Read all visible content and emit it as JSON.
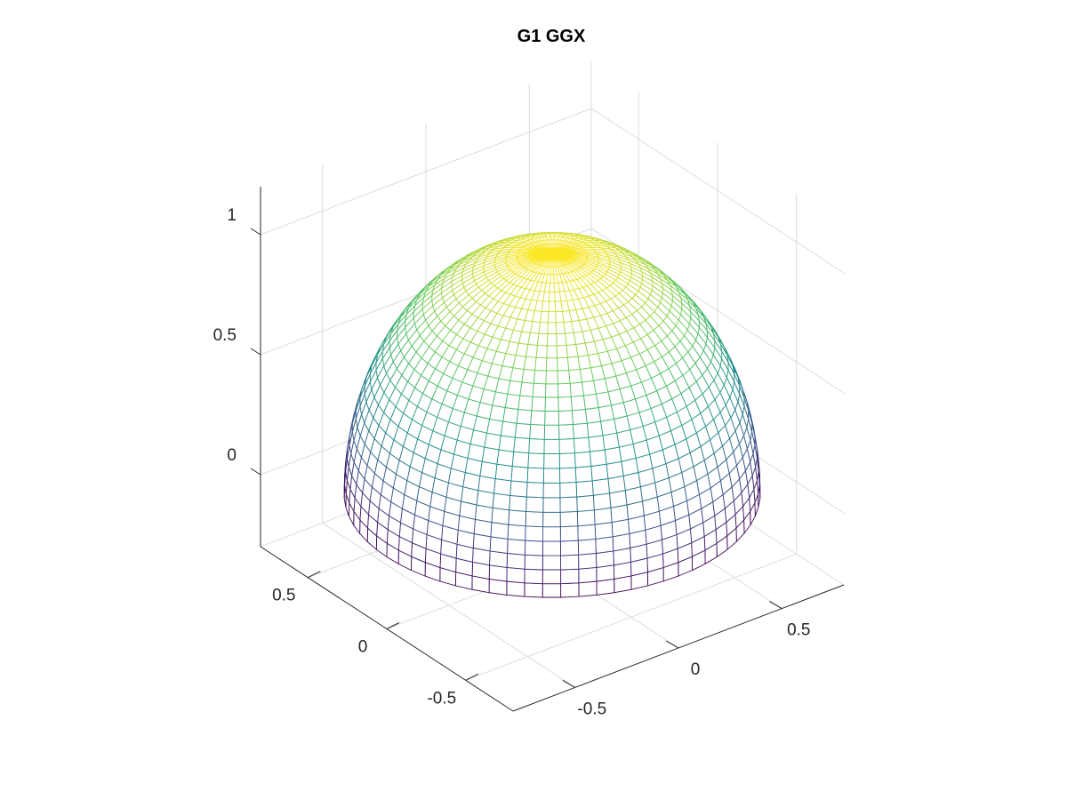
{
  "chart_data": {
    "type": "surface",
    "title": "G1 GGX",
    "xlabel": "",
    "ylabel": "",
    "zlabel": "",
    "xlim": [
      -0.8,
      0.8
    ],
    "ylim": [
      -0.8,
      0.8
    ],
    "zlim": [
      -0.3,
      1.2
    ],
    "x_ticks": [
      {
        "value": -0.5,
        "label": "-0.5"
      },
      {
        "value": 0,
        "label": "0"
      },
      {
        "value": 0.5,
        "label": "0.5"
      }
    ],
    "y_ticks": [
      {
        "value": -0.5,
        "label": "-0.5"
      },
      {
        "value": 0,
        "label": "0"
      },
      {
        "value": 0.5,
        "label": "0.5"
      }
    ],
    "z_ticks": [
      {
        "value": 0,
        "label": "0"
      },
      {
        "value": 0.5,
        "label": "0.5"
      },
      {
        "value": 1,
        "label": "1"
      }
    ],
    "surface": {
      "shape": "hemisphere",
      "radius_xy": 0.8,
      "height": 1.0,
      "grid": "on",
      "colormap": "viridis",
      "colormap_stops": [
        "#440154",
        "#3b528b",
        "#21918c",
        "#5ec962",
        "#fde725"
      ]
    },
    "grid": "on",
    "box": "off",
    "legend": "none"
  }
}
